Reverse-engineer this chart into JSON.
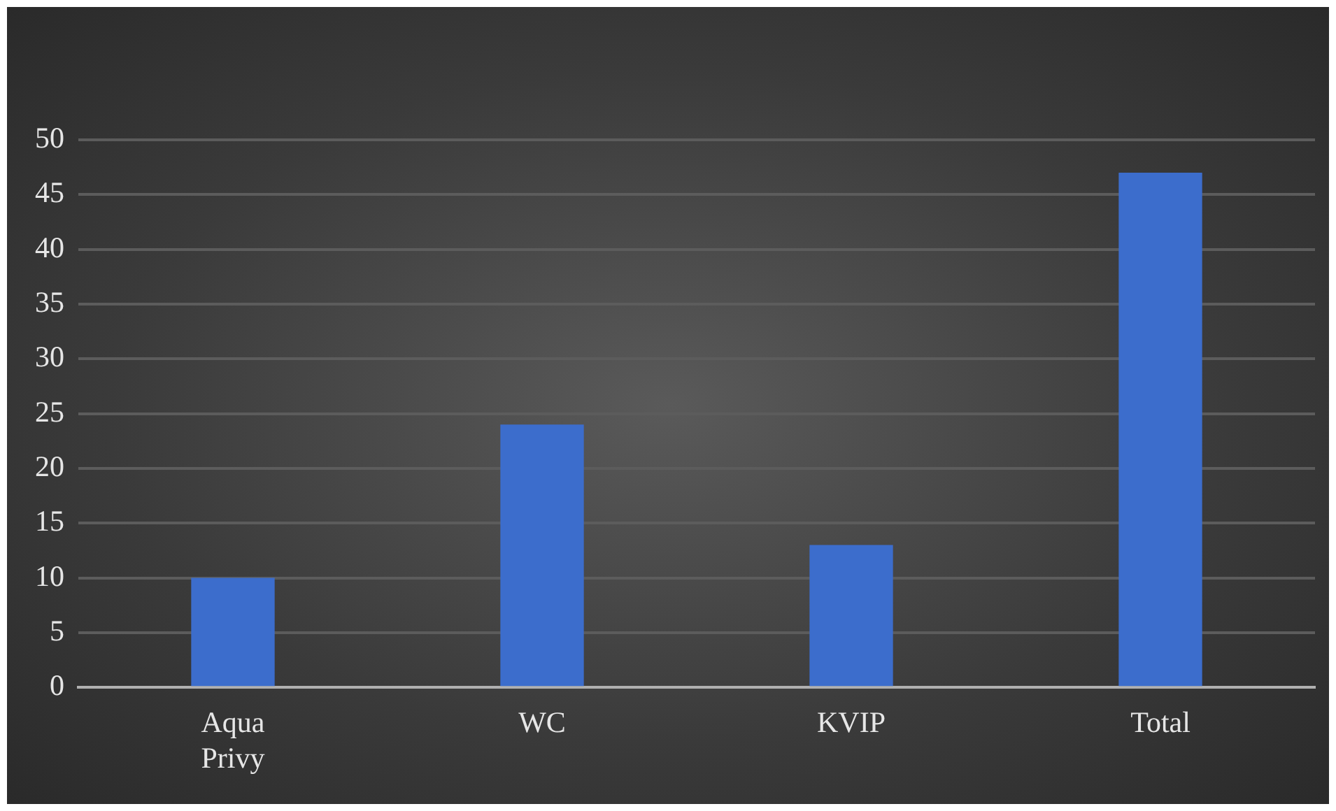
{
  "chart_data": {
    "type": "bar",
    "categories": [
      "Aqua Privy",
      "WC",
      "KVIP",
      "Total"
    ],
    "values": [
      10,
      24,
      13,
      47
    ],
    "color": "#3c6dcc",
    "ylim": [
      0,
      50
    ],
    "yticks": [
      0,
      5,
      10,
      15,
      20,
      25,
      30,
      35,
      40,
      45,
      50
    ],
    "grid": "y",
    "legend": false
  }
}
